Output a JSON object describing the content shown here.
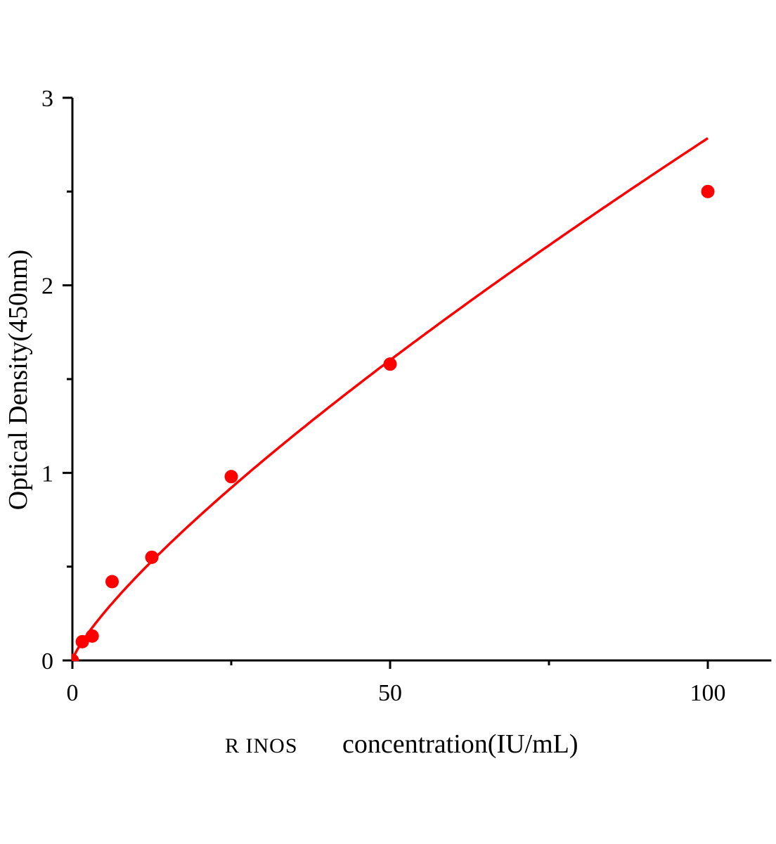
{
  "chart_data": {
    "type": "scatter",
    "title": "",
    "xlabel_prefix": "R INOS",
    "xlabel": "concentration(IU/mL)",
    "ylabel": "Optical Density(450nm)",
    "xlim": [
      0,
      110
    ],
    "ylim": [
      0,
      3
    ],
    "x_ticks": [
      0,
      50,
      100
    ],
    "x_minor_ticks": [
      25,
      75
    ],
    "y_ticks": [
      0,
      1,
      2,
      3
    ],
    "y_minor_ticks": [
      0.5,
      1.5,
      2.5
    ],
    "grid": false,
    "color": "#ff0000",
    "fit_curve": true,
    "series": [
      {
        "x": [
          0,
          1.56,
          3.12,
          6.25,
          12.5,
          25,
          50,
          100
        ],
        "y": [
          0,
          0.1,
          0.13,
          0.42,
          0.55,
          0.98,
          1.58,
          2.5
        ]
      }
    ]
  }
}
